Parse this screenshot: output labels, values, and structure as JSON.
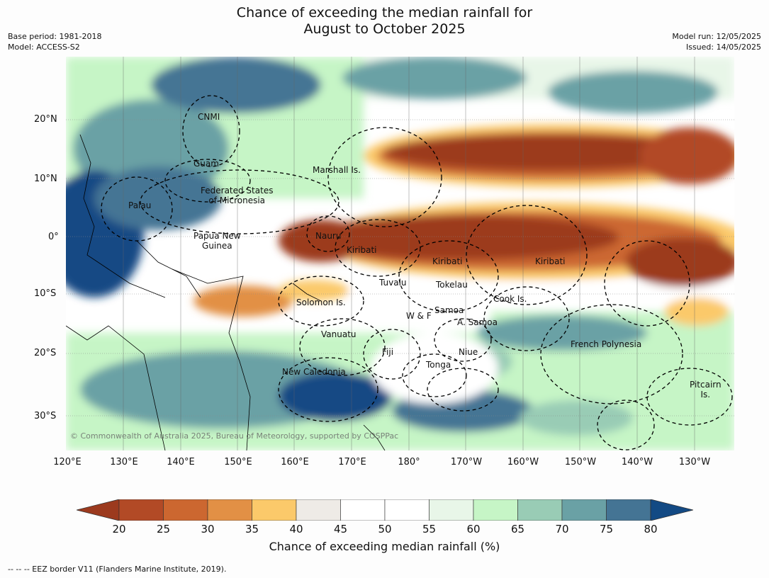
{
  "title": {
    "line1": "Chance of exceeding the median rainfall for",
    "line2": "August to October 2025"
  },
  "meta": {
    "base_period": "Base period: 1981-2018",
    "model": "Model: ACCESS-S2",
    "model_run": "Model run: 12/05/2025",
    "issued": "Issued: 14/05/2025"
  },
  "latitude_labels": [
    "20°N",
    "10°N",
    "0°",
    "10°S",
    "20°S",
    "30°S"
  ],
  "longitude_labels": [
    "120°E",
    "130°E",
    "140°E",
    "150°E",
    "160°E",
    "170°E",
    "180°",
    "170°W",
    "160°W",
    "150°W",
    "140°W",
    "130°W"
  ],
  "places": {
    "cnmi": "CNMI",
    "guam": "Guam",
    "marshall": "Marshall Is.",
    "fsm": "Federated States\nof Micronesia",
    "palau": "Palau",
    "nauru": "Nauru",
    "png": "Papua New\nGuinea",
    "kiribati1": "Kiribati",
    "kiribati2": "Kiribati",
    "kiribati3": "Kiribati",
    "tuvalu": "Tuvalu",
    "tokelau": "Tokelau",
    "solomon": "Solomon Is.",
    "cook": "Cook Is.",
    "samoa": "Samoa",
    "wf": "W & F",
    "asamoa": "A. Samoa",
    "vanuatu": "Vanuatu",
    "fiji": "Fiji",
    "niue": "Niue",
    "tonga": "Tonga",
    "frpoly": "French Polynesia",
    "newcal": "New Caledonia",
    "pitcairn": "Pitcairn\nIs."
  },
  "copyright": "© Commonwealth of Australia 2025, Bureau of Meteorology, supported by COSPPac",
  "colorbar": {
    "ticks": [
      "20",
      "25",
      "30",
      "35",
      "40",
      "45",
      "50",
      "55",
      "60",
      "65",
      "70",
      "75",
      "80"
    ],
    "colors": [
      "#9c3a1e",
      "#b24a26",
      "#cc6730",
      "#e29045",
      "#fbc96a",
      "#eeebe6",
      "#ffffff",
      "#ffffff",
      "#e8f6e8",
      "#c6f5c6",
      "#99ccb5",
      "#6aa1a5",
      "#447494",
      "#134a84"
    ],
    "label": "Chance of exceeding median rainfall (%)"
  },
  "footer": "--  --  -- EEZ border V11 (Flanders Marine Institute, 2019)."
}
